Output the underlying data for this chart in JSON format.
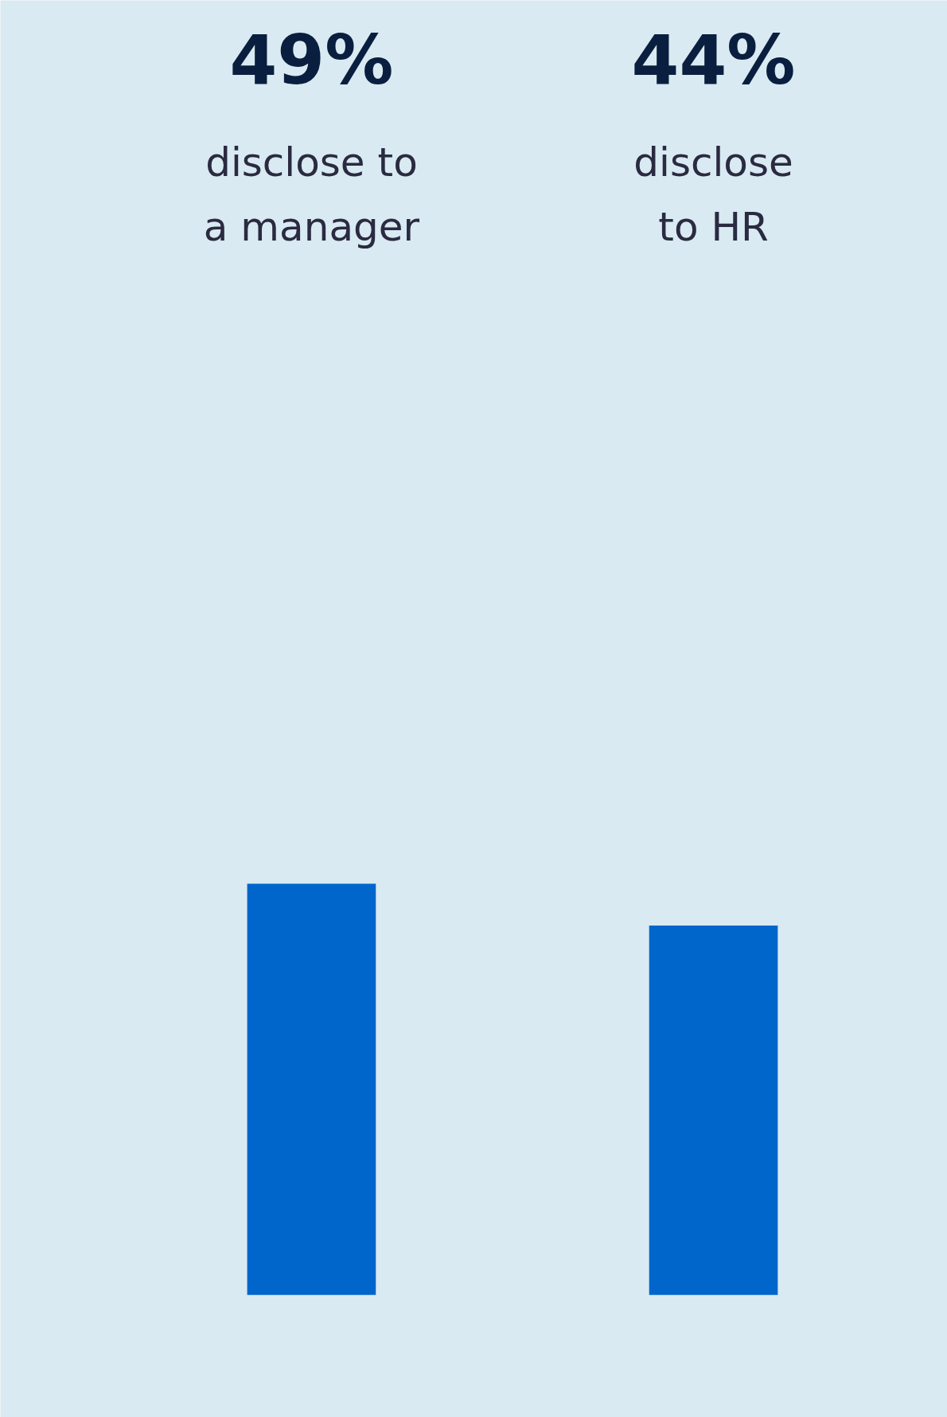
{
  "chart_data": {
    "type": "bar",
    "categories": [
      "disclose to a manager",
      "disclose to HR"
    ],
    "values": [
      49,
      44
    ],
    "value_labels": [
      "49%",
      "44%"
    ],
    "color": "#0066cc"
  }
}
